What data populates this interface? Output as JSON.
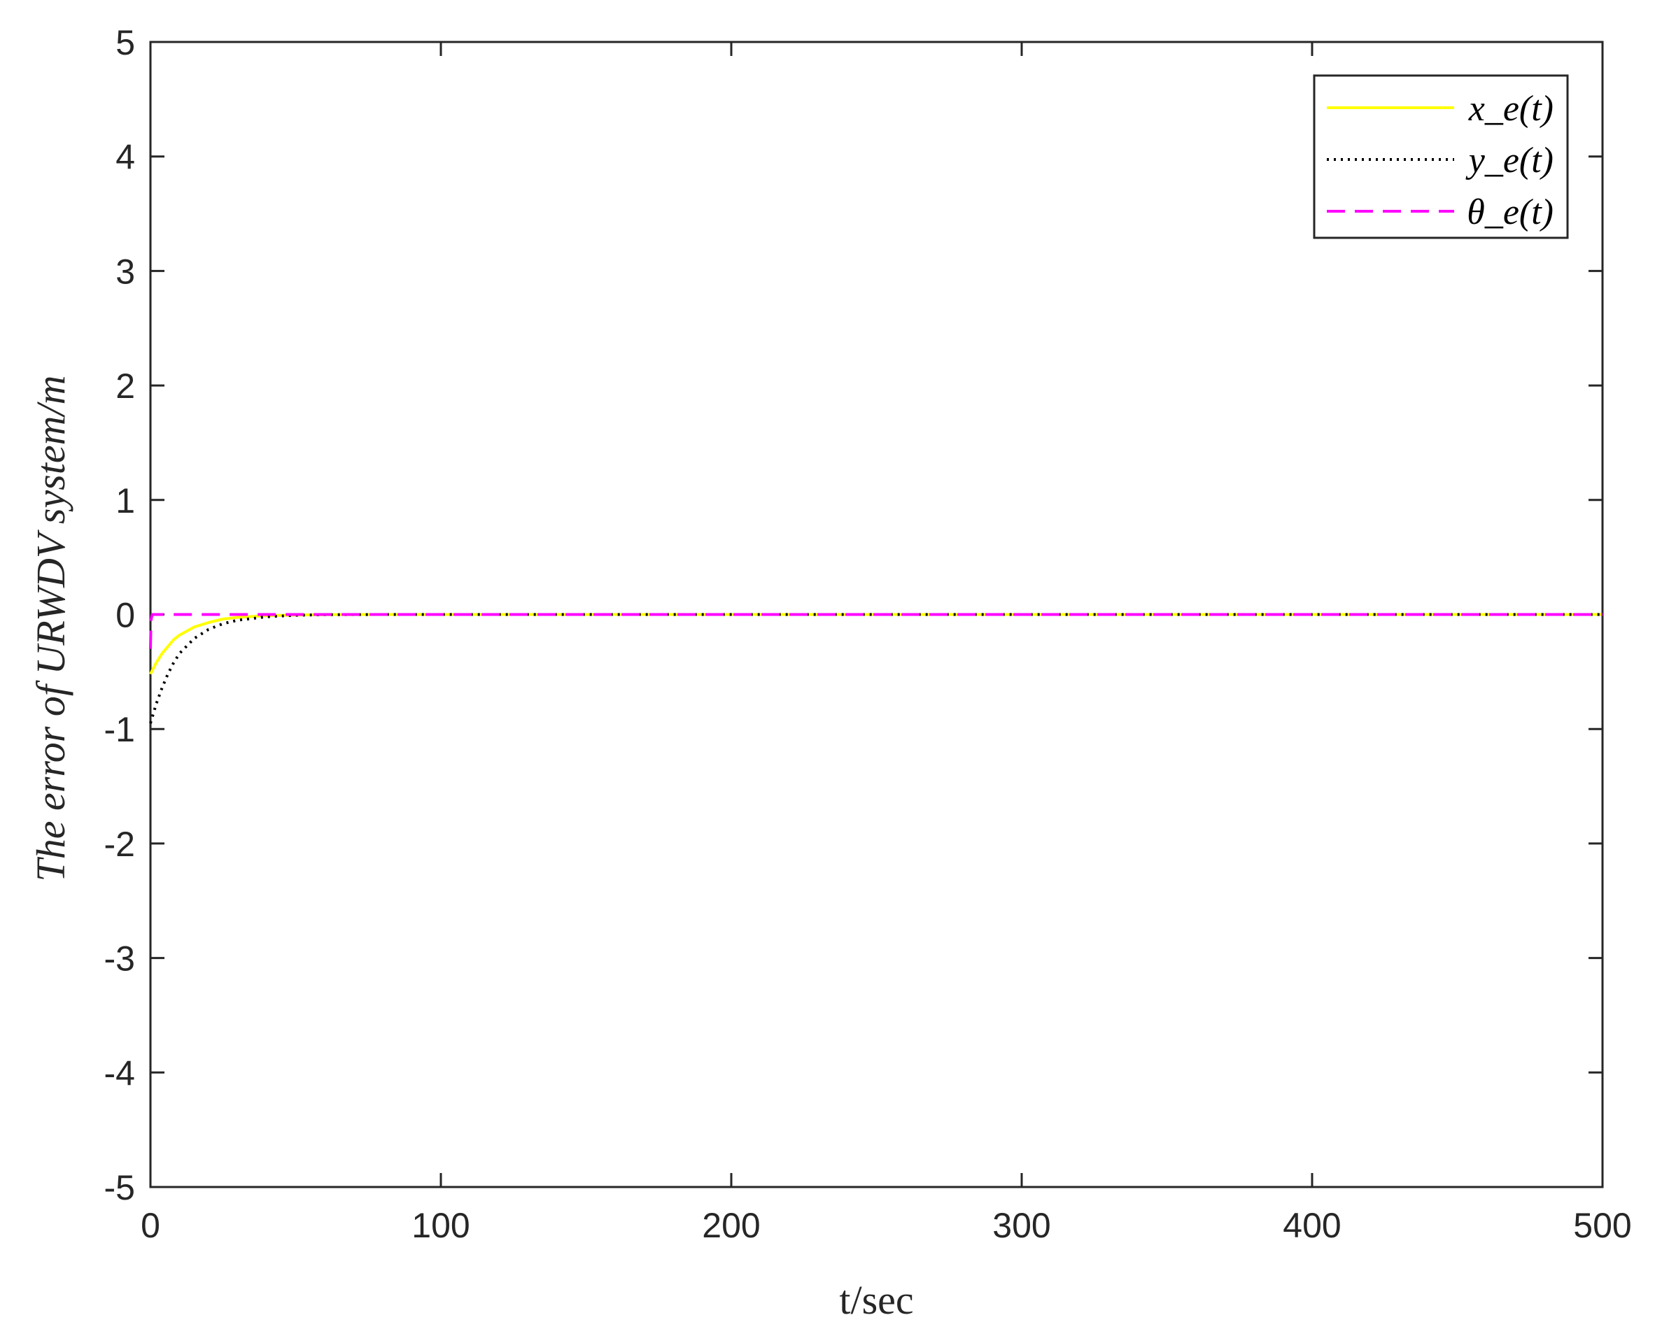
{
  "chart_data": {
    "type": "line",
    "title": "",
    "xlabel": "t/sec",
    "ylabel": "The error of URWDV system/m",
    "xlim": [
      0,
      500
    ],
    "ylim": [
      -5,
      5
    ],
    "x_ticks": [
      0,
      100,
      200,
      300,
      400,
      500
    ],
    "y_ticks": [
      -5,
      -4,
      -3,
      -2,
      -1,
      0,
      1,
      2,
      3,
      4,
      5
    ],
    "x_tick_labels": [
      "0",
      "100",
      "200",
      "300",
      "400",
      "500"
    ],
    "y_tick_labels": [
      "-5",
      "-4",
      "-3",
      "-2",
      "-1",
      "0",
      "1",
      "2",
      "3",
      "4",
      "5"
    ],
    "grid": false,
    "legend_position": "top-right",
    "series": [
      {
        "name": "x_e(t)",
        "color": "#ffff00",
        "style": "solid",
        "x": [
          0,
          2,
          4,
          6,
          8,
          10,
          15,
          20,
          25,
          30,
          40,
          50,
          60,
          80,
          100,
          500
        ],
        "y": [
          -0.52,
          -0.42,
          -0.34,
          -0.28,
          -0.22,
          -0.18,
          -0.11,
          -0.07,
          -0.04,
          -0.025,
          -0.01,
          -0.004,
          -0.001,
          0,
          0,
          0
        ]
      },
      {
        "name": "y_e(t)",
        "color": "#000000",
        "style": "dotted",
        "x": [
          0,
          2,
          4,
          6,
          8,
          10,
          15,
          20,
          25,
          30,
          40,
          50,
          60,
          80,
          100,
          500
        ],
        "y": [
          -0.95,
          -0.78,
          -0.64,
          -0.52,
          -0.42,
          -0.34,
          -0.21,
          -0.13,
          -0.08,
          -0.05,
          -0.02,
          -0.007,
          -0.002,
          0,
          0,
          0
        ]
      },
      {
        "name": "θ_e(t)",
        "color": "#ff00ff",
        "style": "dashed",
        "x": [
          0,
          0.2,
          0.6,
          1,
          2,
          5,
          500
        ],
        "y": [
          -0.3,
          -0.05,
          0,
          0,
          0,
          0,
          0
        ]
      }
    ]
  }
}
